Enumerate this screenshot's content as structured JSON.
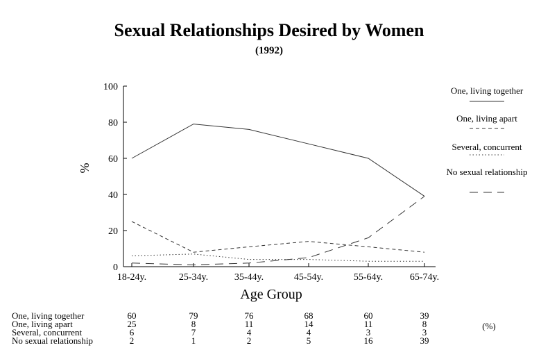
{
  "chart_data": {
    "type": "line",
    "title": "Sexual Relationships Desired by Women",
    "subtitle": "(1992)",
    "xlabel": "Age Group",
    "ylabel": "%",
    "ylim": [
      0,
      100
    ],
    "yticks": [
      0,
      20,
      40,
      60,
      80,
      100
    ],
    "grid": false,
    "legend_placement": "right",
    "categories": [
      "18-24y.",
      "25-34y.",
      "35-44y.",
      "45-54y.",
      "55-64y.",
      "65-74y."
    ],
    "series": [
      {
        "name": "One, living together",
        "style": "solid",
        "values": [
          60,
          79,
          76,
          68,
          60,
          39
        ]
      },
      {
        "name": "One, living apart",
        "style": "dashed",
        "values": [
          25,
          8,
          11,
          14,
          11,
          8
        ]
      },
      {
        "name": "Several, concurrent",
        "style": "dotted",
        "values": [
          6,
          7,
          4,
          4,
          3,
          3
        ]
      },
      {
        "name": "No sexual relationship",
        "style": "longdash",
        "values": [
          2,
          1,
          2,
          5,
          16,
          39
        ]
      }
    ],
    "table_unit": "(%)"
  }
}
